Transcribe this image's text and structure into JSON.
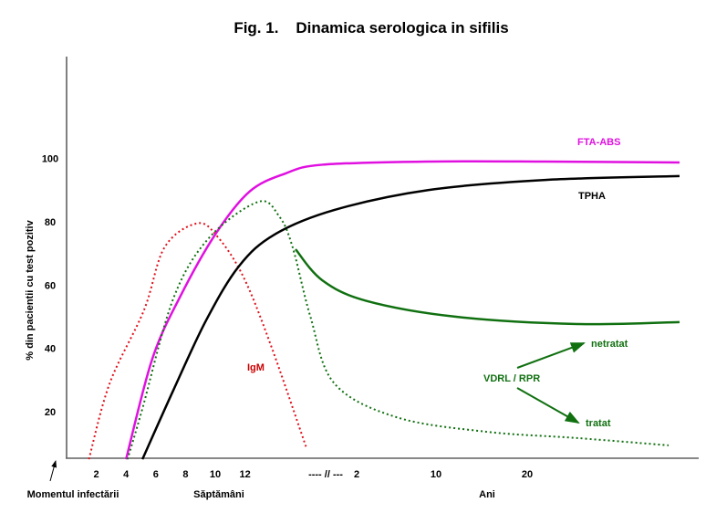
{
  "chart_data": {
    "type": "line",
    "title": "Fig. 1.    Dinamica serologica in sifilis",
    "ylabel": "% din pacientii cu test pozitiv",
    "ylim": [
      5,
      125
    ],
    "yticks": [
      20,
      40,
      60,
      80,
      100
    ],
    "x_segments": [
      {
        "unit": "weeks",
        "label": "Săptămâni",
        "ticks": [
          2,
          4,
          6,
          8,
          10,
          12
        ]
      },
      {
        "unit": "years",
        "label": "Ani",
        "ticks": [
          2,
          10,
          20
        ]
      }
    ],
    "axis_break_label": "---- // ---",
    "origin_label": "Momentul infectării",
    "grid": false,
    "series": [
      {
        "name": "IgM",
        "color": "#e0101a",
        "style": "dotted",
        "label_color": "#cc0000",
        "points": [
          {
            "w": 1.5,
            "y": 5
          },
          {
            "w": 2.9,
            "y": 29
          },
          {
            "w": 5.2,
            "y": 52
          },
          {
            "w": 6.6,
            "y": 72
          },
          {
            "w": 8.8,
            "y": 79.5
          },
          {
            "w": 10.2,
            "y": 75
          },
          {
            "w": 11.9,
            "y": 62.5
          },
          {
            "w": 13.7,
            "y": 41.5
          },
          {
            "w": 16.1,
            "y": 9
          }
        ]
      },
      {
        "name": "FTA-ABS",
        "color": "#e010e0",
        "style": "solid",
        "points": [
          {
            "w": 4,
            "y": 5
          },
          {
            "w": 5.75,
            "y": 36.5
          },
          {
            "w": 7.6,
            "y": 56
          },
          {
            "w": 10,
            "y": 76
          },
          {
            "w": 12.3,
            "y": 89.5
          },
          {
            "w": 14.7,
            "y": 95.2
          },
          {
            "w": 17.2,
            "y": 98
          },
          {
            "yr": 9.2,
            "y": 99
          },
          {
            "yr": 22,
            "y": 99
          },
          {
            "yr": 36.7,
            "y": 98.7
          }
        ]
      },
      {
        "name": "TPHA",
        "color": "#000000",
        "style": "solid",
        "points": [
          {
            "w": 5.1,
            "y": 5
          },
          {
            "w": 7.2,
            "y": 27
          },
          {
            "w": 9.4,
            "y": 49
          },
          {
            "w": 11.6,
            "y": 66
          },
          {
            "w": 14,
            "y": 76
          },
          {
            "w": 18,
            "y": 83.7
          },
          {
            "yr": 9.2,
            "y": 90
          },
          {
            "yr": 22,
            "y": 93.2
          },
          {
            "yr": 36.7,
            "y": 94.4
          }
        ]
      },
      {
        "name": "VDRL / RPR tratat",
        "color": "#107010",
        "style": "dotted",
        "points": [
          {
            "w": 4.1,
            "y": 5
          },
          {
            "w": 5.1,
            "y": 21
          },
          {
            "w": 7.2,
            "y": 56
          },
          {
            "w": 9.6,
            "y": 75
          },
          {
            "w": 12.9,
            "y": 86.3
          },
          {
            "w": 14.3,
            "y": 81.7
          },
          {
            "w": 15.2,
            "y": 72
          },
          {
            "w": 16.4,
            "y": 50
          },
          {
            "w": 18,
            "y": 29
          },
          {
            "yr": 6,
            "y": 18.3
          },
          {
            "yr": 15.5,
            "y": 13.7
          },
          {
            "yr": 25.5,
            "y": 11.7
          },
          {
            "yr": 35.5,
            "y": 9.4
          }
        ]
      },
      {
        "name": "VDRL / RPR netratat",
        "color": "#107010",
        "style": "solid",
        "points": [
          {
            "w": 15.4,
            "y": 71.3
          },
          {
            "w": 17.2,
            "y": 61.5
          },
          {
            "yr": 3,
            "y": 55
          },
          {
            "yr": 12.2,
            "y": 50
          },
          {
            "yr": 25.5,
            "y": 47.7
          },
          {
            "yr": 36.7,
            "y": 48.3
          }
        ]
      }
    ],
    "annotations": {
      "fta": "FTA-ABS",
      "tpha": "TPHA",
      "igm": "IgM",
      "vdrl": "VDRL / RPR",
      "netratat": "netratat",
      "tratat": "tratat"
    },
    "colors": {
      "fta": "#e010e0",
      "igm": "#cc0000",
      "vdrl": "#107010",
      "tpha": "#000000",
      "axis": "#808080"
    }
  }
}
